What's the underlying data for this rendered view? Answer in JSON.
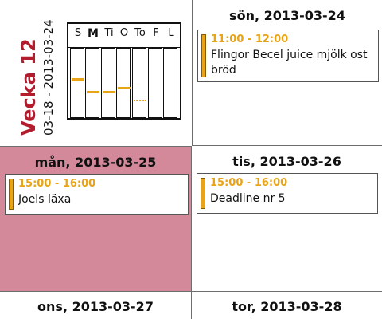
{
  "week": {
    "title": "Vecka 12",
    "range": "03-18 - 2013-03-24"
  },
  "mini_calendar": {
    "days": [
      "S",
      "M",
      "Ti",
      "O",
      "To",
      "F",
      "L"
    ],
    "current_day_index": 1
  },
  "days": [
    {
      "date": "sön, 2013-03-24",
      "highlighted": false,
      "events": [
        {
          "time": "11:00 - 12:00",
          "title": "Flingor Becel juice mjölk ost bröd"
        }
      ]
    },
    {
      "date": "mån, 2013-03-25",
      "highlighted": true,
      "events": [
        {
          "time": "15:00 - 16:00",
          "title": "Joels läxa"
        }
      ]
    },
    {
      "date": "tis, 2013-03-26",
      "highlighted": false,
      "events": [
        {
          "time": "15:00 - 16:00",
          "title": "Deadline nr 5"
        }
      ]
    },
    {
      "date": "ons, 2013-03-27",
      "highlighted": false,
      "events": []
    },
    {
      "date": "tor, 2013-03-28",
      "highlighted": false,
      "events": []
    }
  ],
  "colors": {
    "accent": "#e8a317",
    "week_title": "#b21c2c",
    "highlight_bg": "#d4899a",
    "grid_border": "#6e6e6e"
  }
}
